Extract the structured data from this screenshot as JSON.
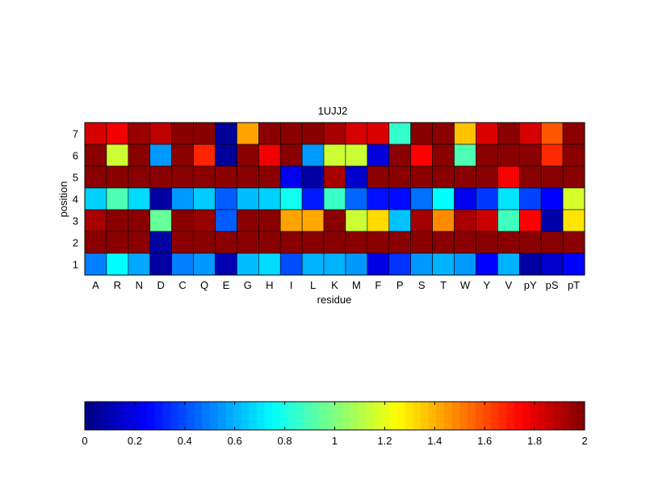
{
  "chart_data": {
    "type": "heatmap",
    "title": "1UJJ2",
    "xlabel": "residue",
    "ylabel": "position",
    "x_categories": [
      "A",
      "R",
      "N",
      "D",
      "C",
      "Q",
      "E",
      "G",
      "H",
      "I",
      "L",
      "K",
      "M",
      "F",
      "P",
      "S",
      "T",
      "W",
      "Y",
      "V",
      "pY",
      "pS",
      "pT"
    ],
    "y_categories": [
      "7",
      "6",
      "5",
      "4",
      "3",
      "2",
      "1"
    ],
    "colormap": "jet",
    "clim": [
      0,
      2
    ],
    "colorbar": {
      "orientation": "horizontal",
      "placement": "bottom",
      "ticks": [
        0,
        0.2,
        0.4,
        0.6,
        0.8,
        1,
        1.2,
        1.4,
        1.6,
        1.8,
        2
      ]
    },
    "values": [
      [
        1.83,
        1.78,
        1.95,
        1.88,
        1.98,
        1.98,
        0.05,
        1.43,
        1.98,
        1.98,
        1.98,
        1.92,
        1.83,
        1.82,
        0.85,
        1.98,
        1.98,
        1.37,
        1.82,
        1.98,
        1.83,
        1.58,
        1.98
      ],
      [
        1.98,
        1.15,
        1.98,
        0.55,
        1.98,
        1.68,
        0.05,
        1.98,
        1.78,
        1.98,
        0.55,
        1.15,
        1.15,
        0.18,
        1.98,
        1.75,
        1.98,
        0.9,
        1.98,
        1.98,
        1.98,
        1.67,
        1.98
      ],
      [
        1.98,
        1.98,
        1.98,
        1.98,
        1.98,
        1.98,
        1.98,
        1.98,
        1.98,
        0.22,
        0.07,
        1.92,
        0.15,
        1.98,
        1.98,
        1.98,
        1.98,
        1.98,
        1.98,
        1.76,
        1.98,
        1.98,
        1.98
      ],
      [
        0.66,
        0.9,
        0.68,
        0.07,
        0.55,
        0.65,
        0.43,
        0.62,
        0.66,
        0.78,
        0.3,
        0.86,
        0.45,
        0.28,
        0.27,
        0.47,
        0.75,
        0.22,
        0.36,
        0.7,
        0.38,
        0.25,
        1.17
      ],
      [
        1.92,
        1.98,
        1.98,
        0.95,
        1.98,
        1.95,
        0.43,
        1.98,
        1.98,
        1.43,
        1.42,
        1.98,
        1.15,
        1.32,
        0.63,
        1.93,
        1.48,
        1.92,
        1.85,
        0.88,
        1.75,
        0.08,
        1.3
      ],
      [
        1.98,
        1.98,
        1.98,
        0.07,
        1.98,
        1.98,
        1.98,
        1.98,
        1.98,
        1.98,
        1.98,
        1.98,
        1.98,
        1.98,
        1.98,
        1.98,
        1.98,
        1.98,
        1.98,
        1.98,
        1.98,
        1.98,
        1.98
      ],
      [
        0.5,
        0.75,
        0.58,
        0.07,
        0.5,
        0.55,
        0.1,
        0.62,
        0.68,
        0.4,
        0.6,
        0.6,
        0.55,
        0.2,
        0.35,
        0.55,
        0.6,
        0.55,
        0.25,
        0.6,
        0.07,
        0.15,
        0.25
      ]
    ]
  }
}
